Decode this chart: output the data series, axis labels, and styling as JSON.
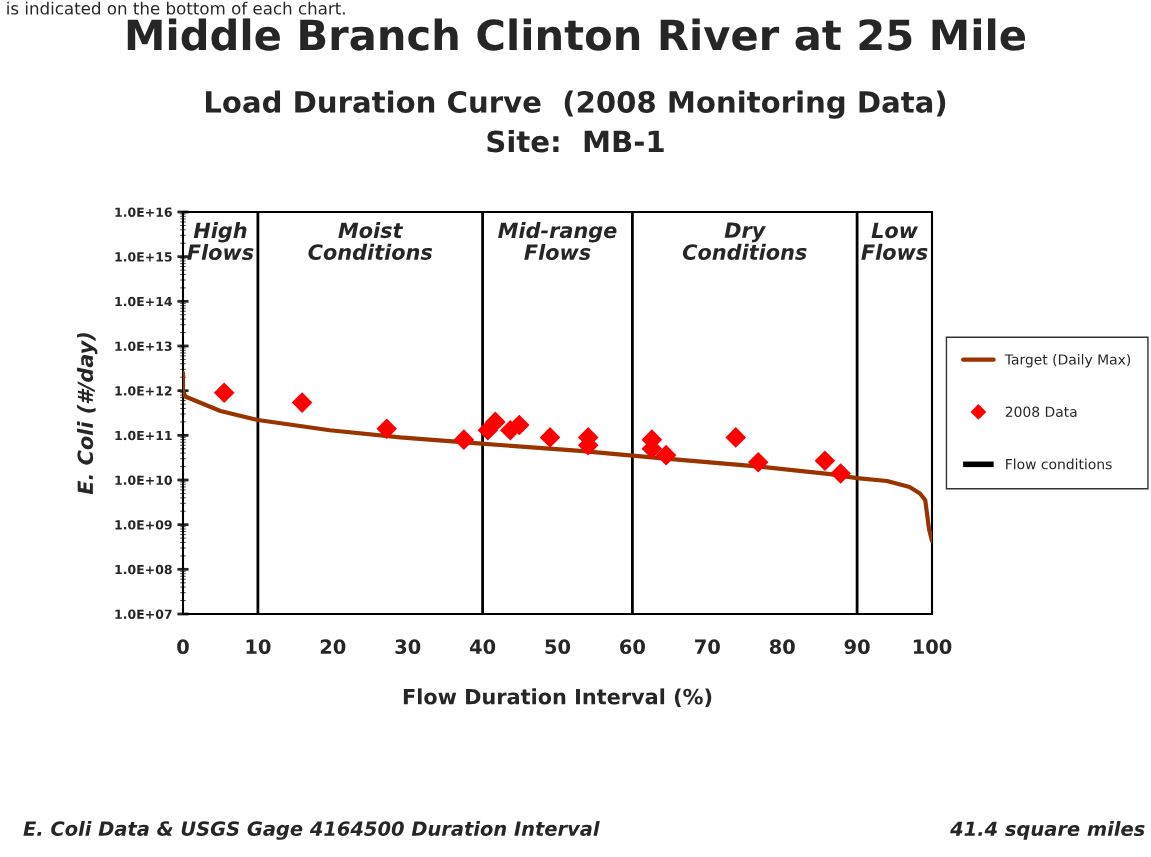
{
  "chart_data": {
    "type": "line",
    "title": "Middle Branch Clinton River at 25 Mile",
    "subtitle": "Load Duration Curve  (2008 Monitoring Data)\nSite:  MB-1",
    "xlabel": "Flow Duration Interval (%)",
    "ylabel": "E. Coli (#/day)",
    "annotations": [
      "is indicated on the bottom of each chart.",
      "E. Coli Data & USGS Gage 4164500 Duration Interval",
      "41.4 square miles",
      "Flow conditions",
      "High\nFlows",
      "Moist\nConditions",
      "Mid-range\nFlows",
      "Dry\nConditions",
      "Low\nFlows"
    ],
    "series": [
      {
        "name": "Target (Daily Max)",
        "type": "line",
        "color": "#993300",
        "marker": "none",
        "x": [
          0,
          0,
          0.3,
          5,
          10,
          19.6,
          29,
          39.4,
          53,
          63.7,
          77,
          86.4,
          90,
          94,
          97,
          98.4,
          99.1,
          99.6,
          100
        ],
        "values": [
          2500000000000.0,
          1000000000000.0,
          740000000000.0,
          350000000000.0,
          220000000000.0,
          130000000000.0,
          90000000000.0,
          66000000000.0,
          45000000000.0,
          31000000000.0,
          20000000000.0,
          13500000000.0,
          11000000000.0,
          9500000000.0,
          7000000000.0,
          5000000000.0,
          3500000000.0,
          800000000.0,
          430000000.0
        ]
      },
      {
        "name": "2008 Data",
        "type": "scatter",
        "color": "#ff0000",
        "marker": "diamond",
        "x": [
          5.5,
          15.9,
          27.2,
          37.5,
          40.7,
          41.7,
          43.7,
          44.9,
          49.0,
          54.1,
          54.1,
          62.6,
          62.6,
          64.5,
          73.8,
          76.8,
          85.7,
          87.8
        ],
        "values": [
          900000000000.0,
          540000000000.0,
          140000000000.0,
          80000000000.0,
          130000000000.0,
          200000000000.0,
          130000000000.0,
          170000000000.0,
          90000000000.0,
          90000000000.0,
          60000000000.0,
          80000000000.0,
          50000000000.0,
          36000000000.0,
          90000000000.0,
          25000000000.0,
          27000000000.0,
          14000000000.0
        ]
      }
    ],
    "ref_lines": [
      {
        "axis": "x",
        "value": 10,
        "color": "#000000"
      },
      {
        "axis": "x",
        "value": 40,
        "color": "#000000"
      },
      {
        "axis": "x",
        "value": 60,
        "color": "#000000"
      },
      {
        "axis": "x",
        "value": 90,
        "color": "#000000"
      }
    ],
    "log": "y",
    "grid": false,
    "legend": "right",
    "xlim": [
      0,
      100
    ],
    "xticks": [
      0,
      10,
      20,
      30,
      40,
      50,
      60,
      70,
      80,
      90,
      100
    ],
    "ylim": [
      10000000.0,
      1e+16
    ],
    "yticks": [
      {
        "value": 10000000.0,
        "label": "1.0E+07"
      },
      {
        "value": 100000000.0,
        "label": "1.0E+08"
      },
      {
        "value": 1000000000.0,
        "label": "1.0E+09"
      },
      {
        "value": 10000000000.0,
        "label": "1.0E+10"
      },
      {
        "value": 100000000000.0,
        "label": "1.0E+11"
      },
      {
        "value": 1000000000000.0,
        "label": "1.0E+12"
      },
      {
        "value": 10000000000000.0,
        "label": "1.0E+13"
      },
      {
        "value": 100000000000000.0,
        "label": "1.0E+14"
      },
      {
        "value": 1000000000000000.0,
        "label": "1.0E+15"
      },
      {
        "value": 1e+16,
        "label": "1.0E+16"
      }
    ]
  }
}
